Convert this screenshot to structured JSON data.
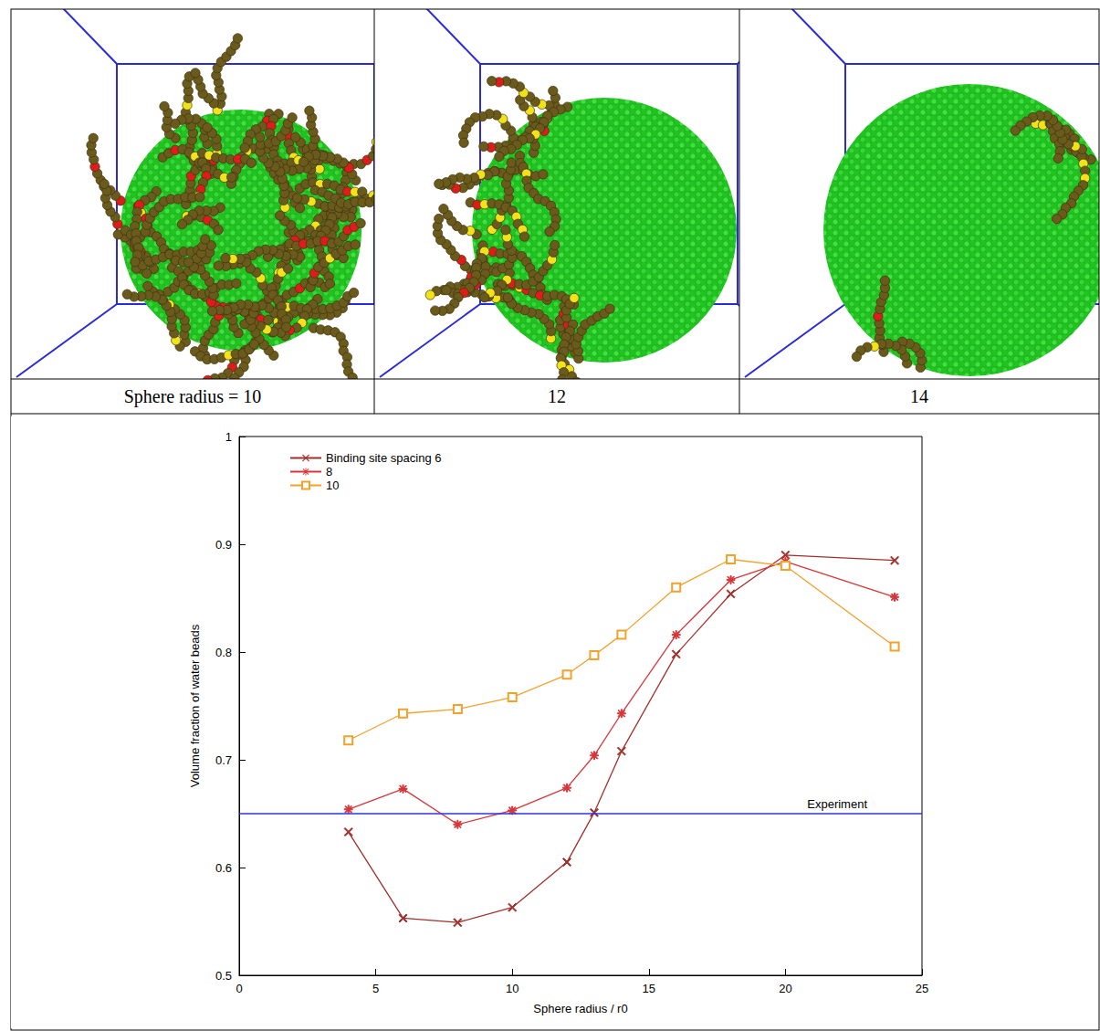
{
  "panels": [
    {
      "caption": "Sphere radius = 10"
    },
    {
      "caption": "12"
    },
    {
      "caption": "14"
    }
  ],
  "chart_data": {
    "type": "line",
    "xlabel": "Sphere radius / r0",
    "ylabel": "Volume fraction of water beads",
    "x": [
      4,
      6,
      8,
      10,
      12,
      13,
      14,
      16,
      18,
      20,
      24
    ],
    "series": [
      {
        "name": "Binding site spacing 6",
        "color": "#a0302c",
        "marker": "cross",
        "values": [
          0.633,
          0.553,
          0.549,
          0.563,
          0.605,
          0.651,
          0.708,
          0.798,
          0.854,
          0.89,
          0.885
        ]
      },
      {
        "name": "8",
        "color": "#d6373a",
        "marker": "star",
        "values": [
          0.654,
          0.673,
          0.64,
          0.653,
          0.674,
          0.704,
          0.743,
          0.816,
          0.867,
          0.884,
          0.851
        ]
      },
      {
        "name": "10",
        "color": "#f2a12a",
        "marker": "square",
        "values": [
          0.718,
          0.743,
          0.747,
          0.758,
          0.779,
          0.797,
          0.816,
          0.86,
          0.886,
          0.88,
          0.805
        ]
      }
    ],
    "reference": {
      "value": 0.65,
      "label": "Experiment",
      "color": "#2f35e0"
    },
    "xlim": [
      0,
      25
    ],
    "xticks": [
      0,
      5,
      10,
      15,
      20,
      25
    ],
    "ylim": [
      0.5,
      1
    ],
    "yticks": [
      0.5,
      0.6,
      0.7,
      0.8,
      0.9,
      1
    ],
    "grid": false,
    "legend": "upper left"
  }
}
